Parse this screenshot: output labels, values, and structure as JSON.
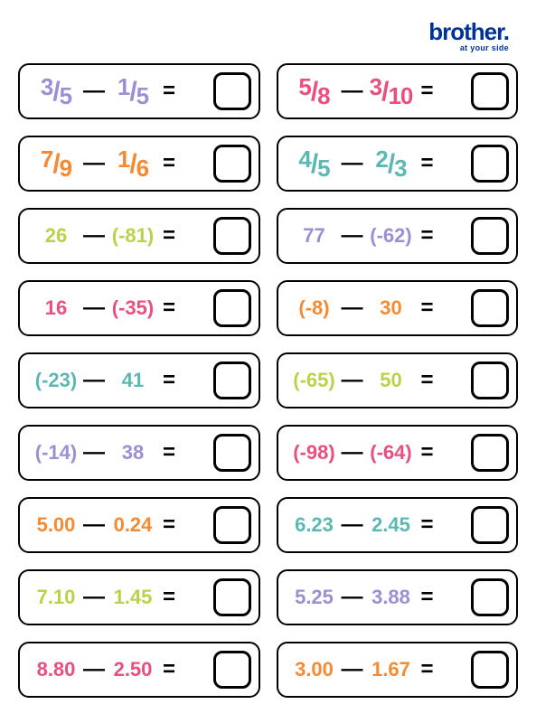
{
  "logo": {
    "main": "brother",
    "dot": ".",
    "tag": "at your side"
  },
  "colors": {
    "purple": "#9e8fd4",
    "orange": "#f58a33",
    "lime": "#b8d349",
    "pink": "#e94f7f",
    "teal": "#5cb8b2",
    "black": "#000000"
  },
  "problems": [
    {
      "type": "frac",
      "a_num": "3",
      "a_den": "5",
      "b_num": "1",
      "b_den": "5",
      "a_color": "purple",
      "b_color": "purple"
    },
    {
      "type": "frac",
      "a_num": "5",
      "a_den": "8",
      "b_num": "3",
      "b_den": "10",
      "a_color": "pink",
      "b_color": "pink"
    },
    {
      "type": "frac",
      "a_num": "7",
      "a_den": "9",
      "b_num": "1",
      "b_den": "6",
      "a_color": "orange",
      "b_color": "orange"
    },
    {
      "type": "frac",
      "a_num": "4",
      "a_den": "5",
      "b_num": "2",
      "b_den": "3",
      "a_color": "teal",
      "b_color": "teal"
    },
    {
      "type": "int",
      "a": "26",
      "b": "(-81)",
      "a_color": "lime",
      "b_color": "lime"
    },
    {
      "type": "int",
      "a": "77",
      "b": "(-62)",
      "a_color": "purple",
      "b_color": "purple"
    },
    {
      "type": "int",
      "a": "16",
      "b": "(-35)",
      "a_color": "pink",
      "b_color": "pink"
    },
    {
      "type": "int",
      "a": "(-8)",
      "b": "30",
      "a_color": "orange",
      "b_color": "orange"
    },
    {
      "type": "int",
      "a": "(-23)",
      "b": "41",
      "a_color": "teal",
      "b_color": "teal"
    },
    {
      "type": "int",
      "a": "(-65)",
      "b": "50",
      "a_color": "lime",
      "b_color": "lime"
    },
    {
      "type": "int",
      "a": "(-14)",
      "b": "38",
      "a_color": "purple",
      "b_color": "purple"
    },
    {
      "type": "int",
      "a": "(-98)",
      "b": "(-64)",
      "a_color": "pink",
      "b_color": "pink"
    },
    {
      "type": "dec",
      "a": "5.00",
      "b": "0.24",
      "a_color": "orange",
      "b_color": "orange"
    },
    {
      "type": "dec",
      "a": "6.23",
      "b": "2.45",
      "a_color": "teal",
      "b_color": "teal"
    },
    {
      "type": "dec",
      "a": "7.10",
      "b": "1.45",
      "a_color": "lime",
      "b_color": "lime"
    },
    {
      "type": "dec",
      "a": "5.25",
      "b": "3.88",
      "a_color": "purple",
      "b_color": "purple"
    },
    {
      "type": "dec",
      "a": "8.80",
      "b": "2.50",
      "a_color": "pink",
      "b_color": "pink"
    },
    {
      "type": "dec",
      "a": "3.00",
      "b": "1.67",
      "a_color": "orange",
      "b_color": "orange"
    }
  ],
  "symbols": {
    "minus": "—",
    "equals": "="
  }
}
